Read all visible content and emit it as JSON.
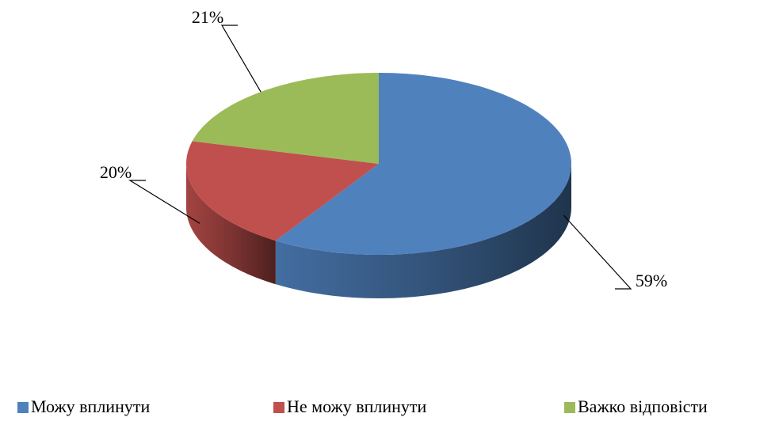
{
  "chart_data": {
    "type": "pie",
    "categories": [
      "Можу вплинути",
      "Не можу вплинути",
      "Важко відповісти"
    ],
    "values": [
      59,
      20,
      21
    ],
    "value_labels": [
      "59%",
      "20%",
      "21%"
    ],
    "colors": [
      "#4f81bd",
      "#c0504d",
      "#9bbb59"
    ],
    "legend": "bottom"
  }
}
